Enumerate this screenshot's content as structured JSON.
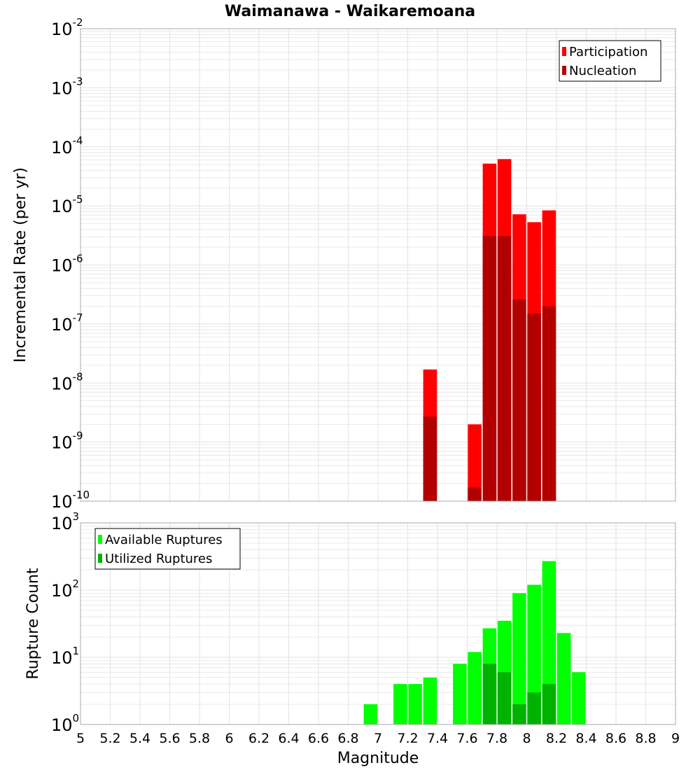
{
  "title": "Waimanawa - Waikaremoana",
  "xlabel": "Magnitude",
  "colors": {
    "participation": "#ff0000",
    "nucleation": "#b20000",
    "available": "#00ff00",
    "utilized": "#00b200",
    "grid": "#e3e3e3",
    "frame": "#aaaaaa"
  },
  "chart_data": [
    {
      "type": "bar",
      "name": "rates",
      "ylabel": "Incremental Rate (per yr)",
      "yscale": "log",
      "ylim_exp": [
        -10,
        -2
      ],
      "yticks": [
        "-10",
        "-9",
        "-8",
        "-7",
        "-6",
        "-5",
        "-4",
        "-3",
        "-2"
      ],
      "legend_position": "top-right",
      "series": [
        {
          "name": "Participation",
          "color": "#ff0000",
          "points": [
            [
              7.35,
              1.7e-08
            ],
            [
              7.65,
              2e-09
            ],
            [
              7.75,
              5.2e-05
            ],
            [
              7.85,
              6.2e-05
            ],
            [
              7.95,
              7.2e-06
            ],
            [
              8.05,
              5.3e-06
            ],
            [
              8.15,
              8.4e-06
            ]
          ]
        },
        {
          "name": "Nucleation",
          "color": "#b20000",
          "points": [
            [
              7.35,
              2.7e-09
            ],
            [
              7.65,
              1.7e-10
            ],
            [
              7.75,
              3.1e-06
            ],
            [
              7.85,
              3.1e-06
            ],
            [
              7.95,
              2.6e-07
            ],
            [
              8.05,
              1.5e-07
            ],
            [
              8.15,
              2e-07
            ]
          ]
        }
      ]
    },
    {
      "type": "bar",
      "name": "counts",
      "ylabel": "Rupture Count",
      "yscale": "log",
      "ylim_exp": [
        0,
        3
      ],
      "yticks": [
        "0",
        "1",
        "2",
        "3"
      ],
      "legend_position": "top-left",
      "series": [
        {
          "name": "Available Ruptures",
          "color": "#00ff00",
          "points": [
            [
              6.55,
              1
            ],
            [
              6.95,
              2
            ],
            [
              7.05,
              1
            ],
            [
              7.15,
              4
            ],
            [
              7.25,
              4
            ],
            [
              7.35,
              5
            ],
            [
              7.45,
              1
            ],
            [
              7.55,
              8
            ],
            [
              7.65,
              12
            ],
            [
              7.75,
              27
            ],
            [
              7.85,
              35
            ],
            [
              7.95,
              90
            ],
            [
              8.05,
              120
            ],
            [
              8.15,
              270
            ],
            [
              8.25,
              23
            ],
            [
              8.35,
              6
            ]
          ]
        },
        {
          "name": "Utilized Ruptures",
          "color": "#00b200",
          "points": [
            [
              7.35,
              1
            ],
            [
              7.65,
              1
            ],
            [
              7.75,
              8
            ],
            [
              7.85,
              6
            ],
            [
              7.95,
              2
            ],
            [
              8.05,
              3
            ],
            [
              8.15,
              4
            ]
          ]
        }
      ]
    }
  ],
  "xaxis": {
    "min": 5,
    "max": 9,
    "ticks": [
      "5",
      "5.2",
      "5.4",
      "5.6",
      "5.8",
      "6",
      "6.2",
      "6.4",
      "6.6",
      "6.8",
      "7",
      "7.2",
      "7.4",
      "7.6",
      "7.8",
      "8",
      "8.2",
      "8.4",
      "8.6",
      "8.8",
      "9"
    ]
  }
}
